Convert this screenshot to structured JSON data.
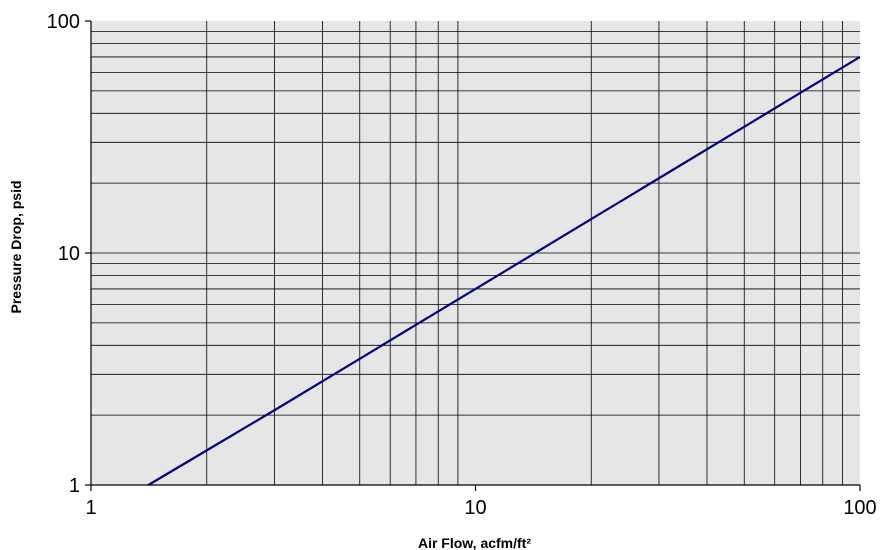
{
  "chart_data": {
    "type": "line",
    "title": "",
    "xlabel": "Air Flow, acfm/ft²",
    "ylabel": "Pressure Drop, psid",
    "x_scale": "log",
    "y_scale": "log",
    "xlim": [
      1,
      100
    ],
    "ylim": [
      1,
      100
    ],
    "x_ticks": [
      "1",
      "10",
      "100"
    ],
    "y_ticks": [
      "1",
      "10",
      "100"
    ],
    "grid": true,
    "legend": "none",
    "series": [
      {
        "color": "#000080",
        "x": [
          1.41,
          2,
          3,
          5,
          7,
          10,
          20,
          30,
          50,
          70,
          100
        ],
        "y": [
          1.0,
          1.41,
          2.1,
          3.5,
          4.9,
          7.0,
          14,
          21,
          35,
          49,
          70
        ]
      }
    ],
    "colors": {
      "plot_background": "#e6e6e6",
      "grid": "#000000",
      "line": "#000080"
    }
  }
}
